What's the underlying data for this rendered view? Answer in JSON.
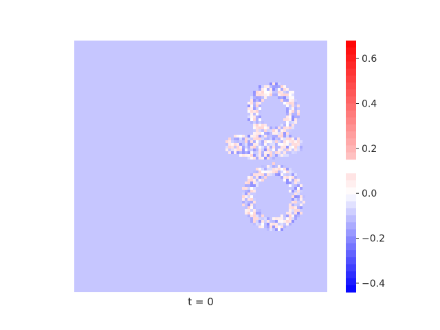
{
  "caption": "t = 0",
  "chart_data": {
    "type": "heatmap",
    "title": "",
    "xlabel": "t = 0",
    "ylabel": "",
    "background_value": 0.0,
    "colormap": [
      "#0000ff",
      "#ffffff",
      "#ff0000"
    ],
    "colorbar": {
      "vmin": -0.44,
      "vmax": 0.68,
      "gap_range": [
        0.09,
        0.16
      ],
      "ticks": [
        0.6,
        0.4,
        0.2,
        0.0,
        -0.2,
        -0.4
      ],
      "tick_labels": [
        "0.6",
        "0.4",
        "0.2",
        "0.0",
        "−0.2",
        "−0.4"
      ]
    },
    "blob": {
      "description_values": "digit-shaped stroke of small positive and negative perturbations",
      "min_value": -0.2,
      "max_value": 0.15
    }
  }
}
